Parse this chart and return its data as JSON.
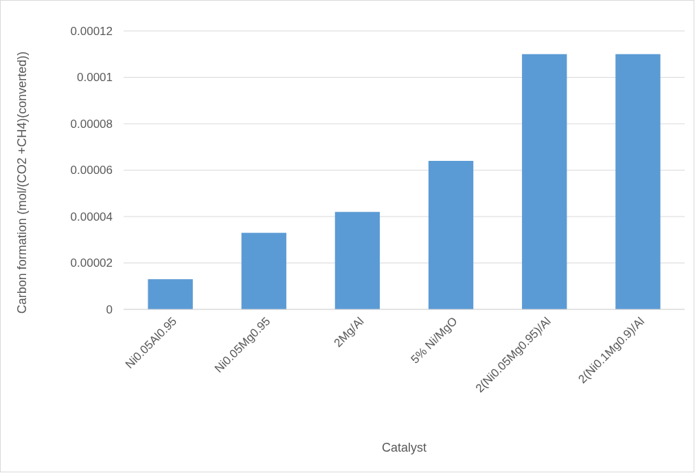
{
  "chart_data": {
    "type": "bar",
    "xlabel": "Catalyst",
    "ylabel": "Carbon formation (mol/(CO2 +CH4)(converted))",
    "categories": [
      "Ni0.05Al0.95",
      "Ni0.05Mg0.95",
      "2Mg/Al",
      "5% Ni/MgO",
      "2(Ni0.05Mg0.95)/Al",
      "2(Ni0.1Mg0.9)/Al"
    ],
    "values": [
      1.3e-05,
      3.3e-05,
      4.2e-05,
      6.4e-05,
      0.00011,
      0.00011
    ],
    "color": "#5b9bd5",
    "ylim": [
      0,
      0.00012
    ],
    "yticks": [
      0,
      {
        "value": 2e-05,
        "label": "0.00002"
      },
      {
        "value": 4e-05,
        "label": "0.00004"
      },
      {
        "value": 6e-05,
        "label": "0.00006"
      },
      {
        "value": 8e-05,
        "label": "0.00008"
      },
      0.0001,
      0.00012
    ],
    "grid": "y"
  }
}
